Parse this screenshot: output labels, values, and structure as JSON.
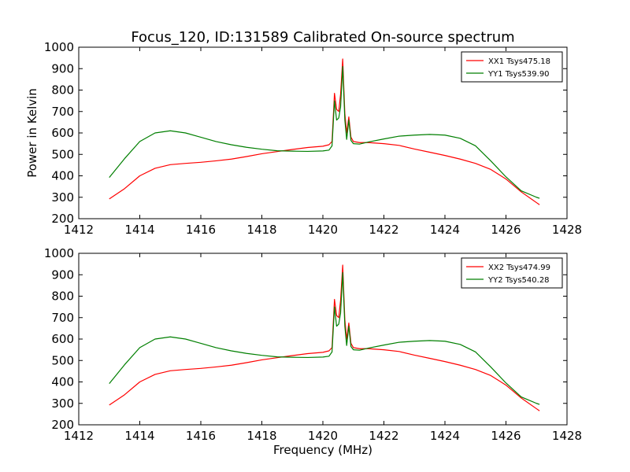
{
  "figure": {
    "title": "Focus_120, ID:131589 Calibrated On-source spectrum",
    "shared_xlabel": "Frequency (MHz)"
  },
  "colors": {
    "xx": "#ff0000",
    "yy": "#007f00",
    "axes": "#000000"
  },
  "chart_data": [
    {
      "type": "line",
      "title": "Focus_120, ID:131589 Calibrated On-source spectrum",
      "xlabel": "",
      "ylabel": "Power in Kelvin",
      "xlim": [
        1412,
        1428
      ],
      "ylim": [
        200,
        1000
      ],
      "xticks": [
        "1412",
        "1414",
        "1416",
        "1418",
        "1420",
        "1422",
        "1424",
        "1426",
        "1428"
      ],
      "yticks": [
        "200",
        "300",
        "400",
        "500",
        "600",
        "700",
        "800",
        "900",
        "1000"
      ],
      "grid": false,
      "legend_position": "top-right",
      "series": [
        {
          "name": "XX1 Tsys475.18",
          "color": "#ff0000",
          "x": [
            1413.0,
            1413.5,
            1414.0,
            1414.5,
            1415.0,
            1415.5,
            1416.0,
            1416.5,
            1417.0,
            1417.5,
            1418.0,
            1418.5,
            1419.0,
            1419.5,
            1420.0,
            1420.2,
            1420.3,
            1420.38,
            1420.45,
            1420.52,
            1420.58,
            1420.65,
            1420.72,
            1420.78,
            1420.85,
            1420.92,
            1421.0,
            1421.2,
            1421.5,
            1422.0,
            1422.5,
            1423.0,
            1423.5,
            1424.0,
            1424.5,
            1425.0,
            1425.5,
            1426.0,
            1426.5,
            1427.0,
            1427.1
          ],
          "y": [
            292,
            340,
            400,
            435,
            452,
            458,
            463,
            470,
            478,
            490,
            503,
            513,
            523,
            532,
            538,
            545,
            560,
            785,
            710,
            700,
            780,
            945,
            690,
            600,
            675,
            580,
            560,
            555,
            555,
            550,
            542,
            525,
            510,
            495,
            478,
            458,
            430,
            385,
            325,
            275,
            265
          ]
        },
        {
          "name": "YY1 Tsys539.90",
          "color": "#007f00",
          "x": [
            1413.0,
            1413.5,
            1414.0,
            1414.5,
            1415.0,
            1415.5,
            1416.0,
            1416.5,
            1417.0,
            1417.5,
            1418.0,
            1418.5,
            1419.0,
            1419.5,
            1420.0,
            1420.2,
            1420.3,
            1420.38,
            1420.45,
            1420.52,
            1420.58,
            1420.65,
            1420.72,
            1420.78,
            1420.85,
            1420.92,
            1421.0,
            1421.2,
            1421.5,
            1422.0,
            1422.5,
            1423.0,
            1423.5,
            1424.0,
            1424.5,
            1425.0,
            1425.5,
            1426.0,
            1426.5,
            1427.0,
            1427.1
          ],
          "y": [
            392,
            480,
            560,
            600,
            610,
            600,
            580,
            560,
            545,
            533,
            524,
            517,
            515,
            514,
            516,
            520,
            540,
            750,
            660,
            670,
            720,
            910,
            660,
            570,
            660,
            565,
            550,
            548,
            558,
            572,
            585,
            590,
            593,
            590,
            575,
            540,
            470,
            395,
            330,
            300,
            295
          ]
        }
      ]
    },
    {
      "type": "line",
      "title": "",
      "xlabel": "Frequency (MHz)",
      "ylabel": "",
      "xlim": [
        1412,
        1428
      ],
      "ylim": [
        200,
        1000
      ],
      "xticks": [
        "1412",
        "1414",
        "1416",
        "1418",
        "1420",
        "1422",
        "1424",
        "1426",
        "1428"
      ],
      "yticks": [
        "200",
        "300",
        "400",
        "500",
        "600",
        "700",
        "800",
        "900",
        "1000"
      ],
      "grid": false,
      "legend_position": "top-right",
      "series": [
        {
          "name": "XX2 Tsys474.99",
          "color": "#ff0000",
          "x": [
            1413.0,
            1413.5,
            1414.0,
            1414.5,
            1415.0,
            1415.5,
            1416.0,
            1416.5,
            1417.0,
            1417.5,
            1418.0,
            1418.5,
            1419.0,
            1419.5,
            1420.0,
            1420.2,
            1420.3,
            1420.38,
            1420.45,
            1420.52,
            1420.58,
            1420.65,
            1420.72,
            1420.78,
            1420.85,
            1420.92,
            1421.0,
            1421.2,
            1421.5,
            1422.0,
            1422.5,
            1423.0,
            1423.5,
            1424.0,
            1424.5,
            1425.0,
            1425.5,
            1426.0,
            1426.5,
            1427.0,
            1427.1
          ],
          "y": [
            292,
            340,
            400,
            435,
            452,
            458,
            463,
            470,
            478,
            490,
            503,
            513,
            523,
            532,
            538,
            545,
            560,
            785,
            710,
            700,
            780,
            945,
            690,
            600,
            675,
            580,
            560,
            555,
            555,
            550,
            542,
            525,
            510,
            495,
            478,
            458,
            430,
            385,
            325,
            275,
            265
          ]
        },
        {
          "name": "YY2 Tsys540.28",
          "color": "#007f00",
          "x": [
            1413.0,
            1413.5,
            1414.0,
            1414.5,
            1415.0,
            1415.5,
            1416.0,
            1416.5,
            1417.0,
            1417.5,
            1418.0,
            1418.5,
            1419.0,
            1419.5,
            1420.0,
            1420.2,
            1420.3,
            1420.38,
            1420.45,
            1420.52,
            1420.58,
            1420.65,
            1420.72,
            1420.78,
            1420.85,
            1420.92,
            1421.0,
            1421.2,
            1421.5,
            1422.0,
            1422.5,
            1423.0,
            1423.5,
            1424.0,
            1424.5,
            1425.0,
            1425.5,
            1426.0,
            1426.5,
            1427.0,
            1427.1
          ],
          "y": [
            392,
            480,
            560,
            600,
            610,
            600,
            580,
            560,
            545,
            533,
            524,
            517,
            515,
            514,
            516,
            520,
            540,
            750,
            660,
            670,
            720,
            910,
            660,
            570,
            660,
            565,
            550,
            548,
            558,
            572,
            585,
            590,
            593,
            590,
            575,
            540,
            470,
            395,
            330,
            300,
            295
          ]
        }
      ]
    }
  ]
}
